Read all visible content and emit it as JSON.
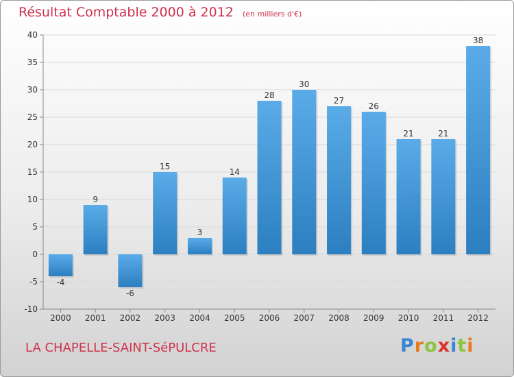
{
  "chart_title": "Résultat Comptable 2000 à 2012",
  "chart_unit": "(en milliers d'€)",
  "commune": "LA CHAPELLE-SAINT-SéPULCRE",
  "brand": {
    "letters": [
      {
        "char": "P",
        "color": "#3a86d4"
      },
      {
        "char": "r",
        "color": "#e8791c"
      },
      {
        "char": "o",
        "color": "#8cc43e"
      },
      {
        "char": "x",
        "color": "#d8342c"
      },
      {
        "char": "i",
        "color": "#3a86d4"
      },
      {
        "char": "t",
        "color": "#8cc43e"
      },
      {
        "char": "i",
        "color": "#e8791c"
      }
    ]
  },
  "colors": {
    "bar_light": "#5aabe8",
    "bar_dark": "#2c7fc0",
    "title": "#d0314a",
    "grid": "#d8d8d8",
    "axis": "#888888",
    "label": "#333333"
  },
  "chart_data": {
    "type": "bar",
    "title": "Résultat Comptable 2000 à 2012",
    "subtitle": "(en milliers d'€)",
    "xlabel": "",
    "ylabel": "",
    "categories": [
      "2000",
      "2001",
      "2002",
      "2003",
      "2004",
      "2005",
      "2006",
      "2007",
      "2008",
      "2009",
      "2010",
      "2011",
      "2012"
    ],
    "values": [
      -4,
      9,
      -6,
      15,
      3,
      14,
      28,
      30,
      27,
      26,
      21,
      21,
      38
    ],
    "ylim": [
      -10,
      40
    ],
    "yticks": [
      -10,
      -5,
      0,
      5,
      10,
      15,
      20,
      25,
      30,
      35,
      40
    ],
    "grid": true,
    "legend": "none"
  }
}
